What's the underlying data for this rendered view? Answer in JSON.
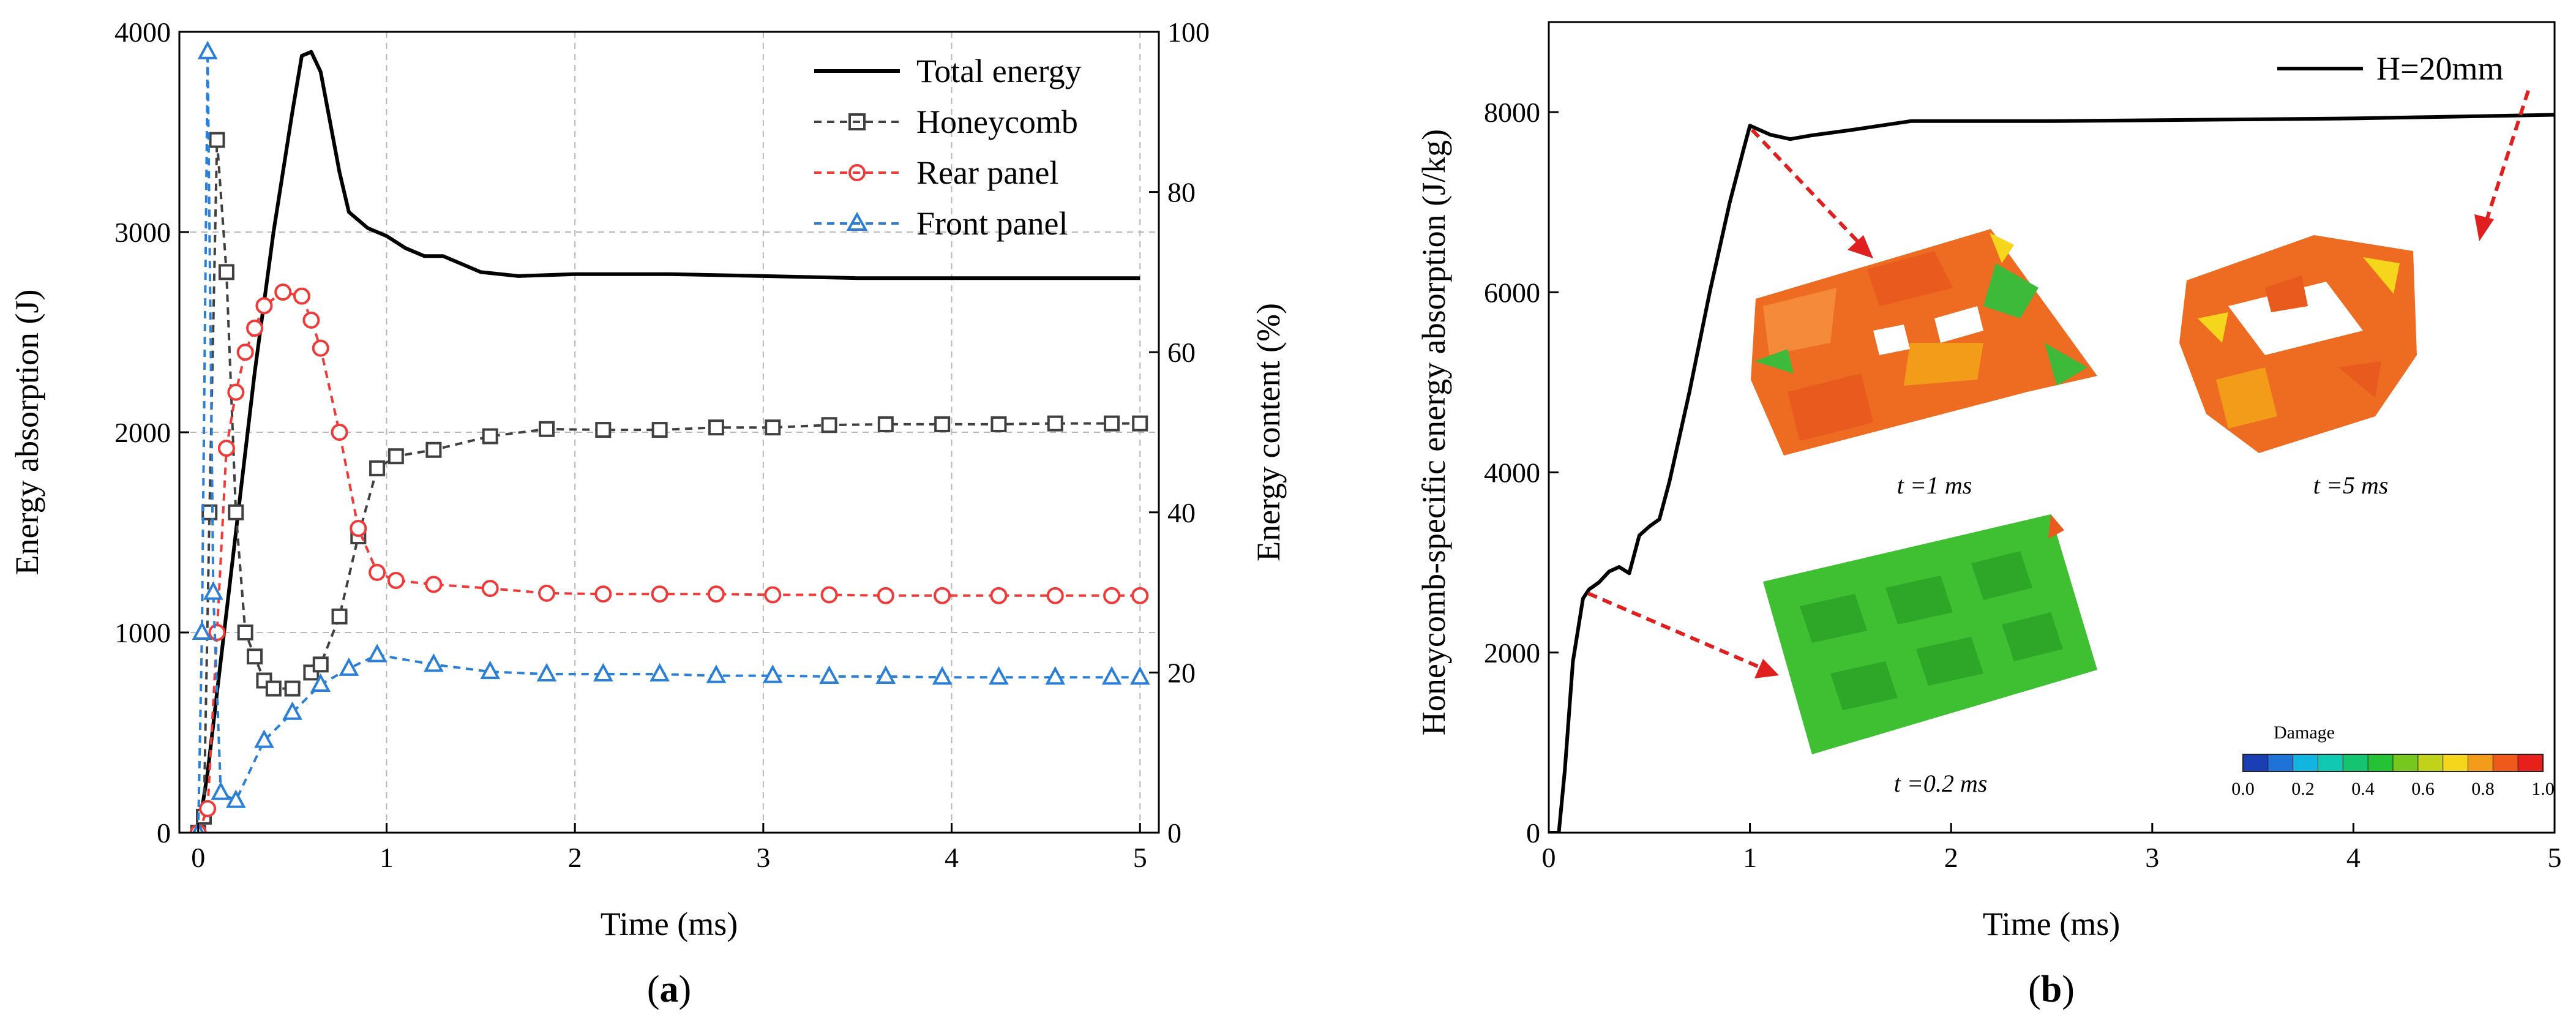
{
  "chart_data": [
    {
      "id": "a",
      "type": "line",
      "panel_label": "a",
      "xlabel": "Time (ms)",
      "ylabel": "Energy absorption (J)",
      "y2label": "Energy content (%)",
      "xlim": [
        -0.1,
        5.1
      ],
      "ylim": [
        0,
        4000
      ],
      "y2lim": [
        0,
        100
      ],
      "xticks": [
        "0",
        "1",
        "2",
        "3",
        "4",
        "5"
      ],
      "yticks": [
        "0",
        "1000",
        "2000",
        "3000",
        "4000"
      ],
      "y2ticks": [
        "0",
        "20",
        "40",
        "60",
        "80",
        "100"
      ],
      "grid": true,
      "legend_position": "top-right",
      "series": [
        {
          "name": "Total energy",
          "axis": "left",
          "color": "#000000",
          "style": "solid",
          "marker": "none",
          "x": [
            0,
            0.05,
            0.1,
            0.2,
            0.3,
            0.4,
            0.5,
            0.55,
            0.6,
            0.65,
            0.7,
            0.75,
            0.8,
            0.9,
            1.0,
            1.1,
            1.2,
            1.3,
            1.4,
            1.5,
            1.7,
            2.0,
            2.5,
            3.0,
            3.5,
            4.0,
            4.5,
            5.0
          ],
          "y": [
            0,
            300,
            700,
            1500,
            2300,
            3000,
            3600,
            3880,
            3900,
            3800,
            3550,
            3300,
            3100,
            3020,
            2980,
            2920,
            2880,
            2880,
            2840,
            2800,
            2780,
            2790,
            2790,
            2780,
            2770,
            2770,
            2770,
            2770
          ]
        },
        {
          "name": "Honeycomb",
          "axis": "right",
          "color": "#404040",
          "style": "dashed",
          "marker": "square",
          "x": [
            0,
            0.03,
            0.06,
            0.1,
            0.15,
            0.2,
            0.25,
            0.3,
            0.35,
            0.4,
            0.5,
            0.6,
            0.65,
            0.75,
            0.85,
            0.95,
            1.05,
            1.25,
            1.55,
            1.85,
            2.15,
            2.45,
            2.75,
            3.05,
            3.35,
            3.65,
            3.95,
            4.25,
            4.55,
            4.85,
            5.0
          ],
          "y": [
            0,
            2,
            40,
            86.5,
            70,
            40,
            25,
            22,
            19,
            18,
            18,
            20,
            21,
            27,
            37,
            45.5,
            47,
            47.8,
            49.5,
            50.4,
            50.3,
            50.3,
            50.6,
            50.6,
            50.9,
            51,
            51,
            51,
            51.1,
            51.1,
            51.1
          ]
        },
        {
          "name": "Rear panel",
          "axis": "right",
          "color": "#f03a3a",
          "style": "dashed",
          "marker": "circle",
          "x": [
            0,
            0.05,
            0.1,
            0.15,
            0.2,
            0.25,
            0.3,
            0.35,
            0.45,
            0.55,
            0.6,
            0.65,
            0.75,
            0.85,
            0.95,
            1.05,
            1.25,
            1.55,
            1.85,
            2.15,
            2.45,
            2.75,
            3.05,
            3.35,
            3.65,
            3.95,
            4.25,
            4.55,
            4.85,
            5.0
          ],
          "y": [
            0,
            3,
            25,
            48,
            55,
            60,
            63,
            65.8,
            67.5,
            67,
            64,
            60.5,
            50,
            38,
            32.5,
            31.5,
            31,
            30.5,
            29.9,
            29.8,
            29.8,
            29.8,
            29.7,
            29.7,
            29.6,
            29.6,
            29.6,
            29.6,
            29.6,
            29.6
          ]
        },
        {
          "name": "Front panel",
          "axis": "right",
          "color": "#2b7fd6",
          "style": "dashed",
          "marker": "triangle",
          "x": [
            0,
            0.02,
            0.05,
            0.08,
            0.12,
            0.2,
            0.35,
            0.5,
            0.65,
            0.8,
            0.95,
            1.25,
            1.55,
            1.85,
            2.15,
            2.45,
            2.75,
            3.05,
            3.35,
            3.65,
            3.95,
            4.25,
            4.55,
            4.85,
            5.0
          ],
          "y": [
            0,
            25,
            97.5,
            30,
            5,
            4,
            11.5,
            15,
            18.5,
            20.5,
            22.2,
            21,
            20.1,
            19.8,
            19.8,
            19.8,
            19.6,
            19.6,
            19.5,
            19.5,
            19.4,
            19.4,
            19.4,
            19.4,
            19.4
          ]
        }
      ]
    },
    {
      "id": "b",
      "type": "line",
      "panel_label": "b",
      "xlabel": "Time (ms)",
      "ylabel": "Honeycomb-specific energy absorption (J/kg)",
      "xlim": [
        0,
        5
      ],
      "ylim": [
        0,
        9000
      ],
      "xticks": [
        "0",
        "1",
        "2",
        "3",
        "4",
        "5"
      ],
      "yticks": [
        "0",
        "2000",
        "4000",
        "6000",
        "8000"
      ],
      "grid": false,
      "legend_position": "top-right",
      "series": [
        {
          "name": "H=20mm",
          "color": "#000000",
          "style": "solid",
          "x": [
            0,
            0.05,
            0.08,
            0.12,
            0.17,
            0.2,
            0.25,
            0.3,
            0.35,
            0.4,
            0.45,
            0.5,
            0.55,
            0.6,
            0.7,
            0.8,
            0.9,
            0.97,
            1.0,
            1.05,
            1.1,
            1.2,
            1.3,
            1.5,
            1.8,
            2.0,
            2.5,
            3.0,
            3.5,
            4.0,
            4.5,
            5.0
          ],
          "y": [
            0,
            0,
            700,
            1900,
            2600,
            2700,
            2780,
            2900,
            2950,
            2880,
            3300,
            3400,
            3480,
            3900,
            4900,
            6000,
            7000,
            7600,
            7850,
            7800,
            7750,
            7700,
            7740,
            7800,
            7900,
            7900,
            7900,
            7910,
            7920,
            7930,
            7950,
            7970
          ]
        }
      ],
      "annotations": [
        "t =1 ms",
        "t =5 ms",
        "t =0.2 ms"
      ],
      "colorbar": {
        "title": "Damage",
        "ticks": [
          "0.0",
          "0.2",
          "0.4",
          "0.6",
          "0.8",
          "1.0"
        ],
        "colors": [
          "#1a3fb5",
          "#1f73d8",
          "#12b5df",
          "#10c9b3",
          "#14c46f",
          "#25c236",
          "#76c81e",
          "#c1d21b",
          "#f6d51d",
          "#f39c1a",
          "#ef5a1a",
          "#e8201c"
        ]
      }
    }
  ]
}
